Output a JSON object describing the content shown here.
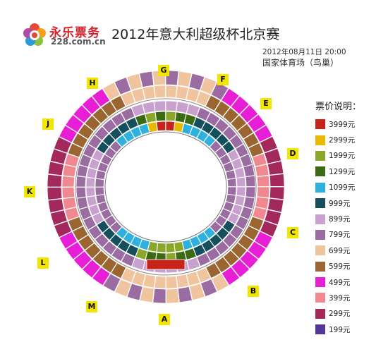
{
  "logo": {
    "name": "永乐票务",
    "domain": "228.com.cn"
  },
  "event": {
    "title": "2012年意大利超级杯北京赛",
    "datetime": "2012年08月11日  20:00",
    "venue": "国家体育场（鸟巢）"
  },
  "gates": {
    "A": "A",
    "B": "B",
    "C": "C",
    "D": "D",
    "E": "E",
    "F": "F",
    "G": "G",
    "H": "H",
    "J": "J",
    "K": "K",
    "L": "L",
    "M": "M"
  },
  "legend": {
    "title": "票价说明：",
    "items": [
      {
        "label": "3999元",
        "color": "#c8231b"
      },
      {
        "label": "2999元",
        "color": "#e9b800"
      },
      {
        "label": "1999元",
        "color": "#8aa72a"
      },
      {
        "label": "1299元",
        "color": "#3a6b12"
      },
      {
        "label": "1099元",
        "color": "#2fb1e0"
      },
      {
        "label": "999元",
        "color": "#154f5e"
      },
      {
        "label": "899元",
        "color": "#c9a1cf"
      },
      {
        "label": "799元",
        "color": "#9a6ca1"
      },
      {
        "label": "699元",
        "color": "#f0c49f"
      },
      {
        "label": "599元",
        "color": "#9a6530"
      },
      {
        "label": "499元",
        "color": "#e81ed6"
      },
      {
        "label": "399元",
        "color": "#f1878f"
      },
      {
        "label": "299元",
        "color": "#a3295d"
      },
      {
        "label": "199元",
        "color": "#53359b"
      }
    ]
  }
}
